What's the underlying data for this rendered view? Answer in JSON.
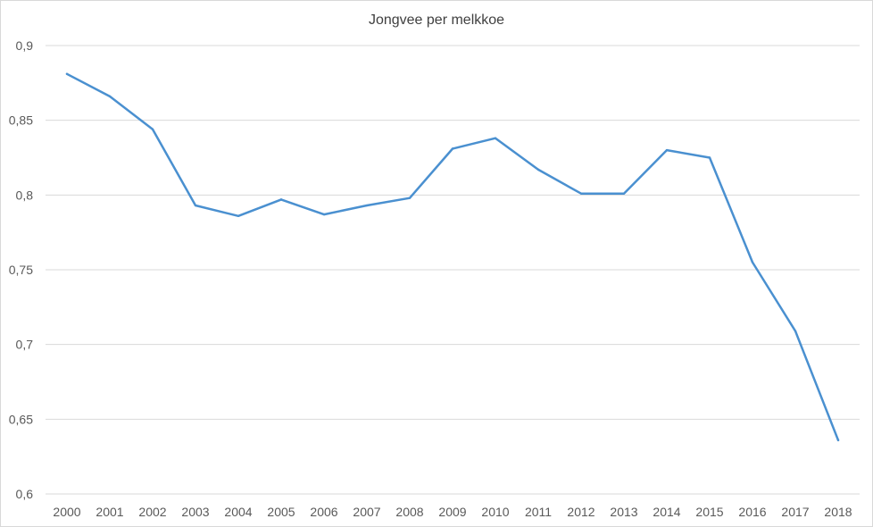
{
  "chart_data": {
    "type": "line",
    "title": "Jongvee per melkkoe",
    "xlabel": "",
    "ylabel": "",
    "categories": [
      "2000",
      "2001",
      "2002",
      "2003",
      "2004",
      "2005",
      "2006",
      "2007",
      "2008",
      "2009",
      "2010",
      "2011",
      "2012",
      "2013",
      "2014",
      "2015",
      "2016",
      "2017",
      "2018"
    ],
    "series": [
      {
        "values": [
          0.881,
          0.866,
          0.844,
          0.793,
          0.786,
          0.797,
          0.787,
          0.793,
          0.798,
          0.831,
          0.838,
          0.817,
          0.801,
          0.801,
          0.83,
          0.825,
          0.755,
          0.709,
          0.636
        ],
        "color": "#4a90d0"
      }
    ],
    "ylim": [
      0.6,
      0.9
    ],
    "yticks": [
      0.6,
      0.65,
      0.7,
      0.75,
      0.8,
      0.85,
      0.9
    ],
    "ytick_labels": [
      "0,6",
      "0,65",
      "0,7",
      "0,75",
      "0,8",
      "0,85",
      "0,9"
    ],
    "grid": true,
    "legend": "none",
    "colors": {
      "gridline": "#d9d9d9",
      "axis": "#d9d9d9",
      "text": "#595959",
      "title": "#404040"
    }
  }
}
